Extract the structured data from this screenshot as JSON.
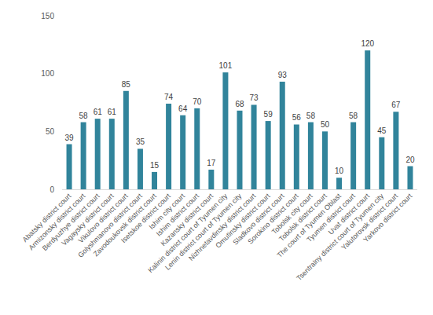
{
  "chart_data": {
    "type": "bar",
    "categories": [
      "Abatsky district court",
      "Armizonsky district court",
      "Berdyuzhye district court",
      "Vagaysky district court",
      "Vikulovo district court",
      "Golyshmanovo district court",
      "Zavodoukovsk district court",
      "Isetskoe district court",
      "Ishim city court",
      "Ishim district court",
      "Kazansky district court",
      "Kalinin district court of Tyumen city",
      "Lenin district court of Tyumen city",
      "Nizhnetavdinsky district court",
      "Omutinsky district court",
      "Sladkovo district court",
      "Sorokino district court",
      "Tobolsk city court",
      "Tobolsk district court",
      "The court of Tyumen Oblast",
      "Tyumen district court",
      "Uvat district court",
      "Tsentralny district court of Tyumen city",
      "Yalutorovsk district court",
      "Yarkovo district court"
    ],
    "values": [
      39,
      58,
      61,
      61,
      85,
      35,
      15,
      74,
      64,
      70,
      17,
      101,
      68,
      73,
      59,
      93,
      56,
      58,
      50,
      10,
      58,
      120,
      45,
      67,
      20
    ],
    "color": "#31849b",
    "ylim": [
      0,
      150
    ],
    "yticks": [
      0,
      50,
      100,
      150
    ],
    "grid": false,
    "data_labels": true
  }
}
